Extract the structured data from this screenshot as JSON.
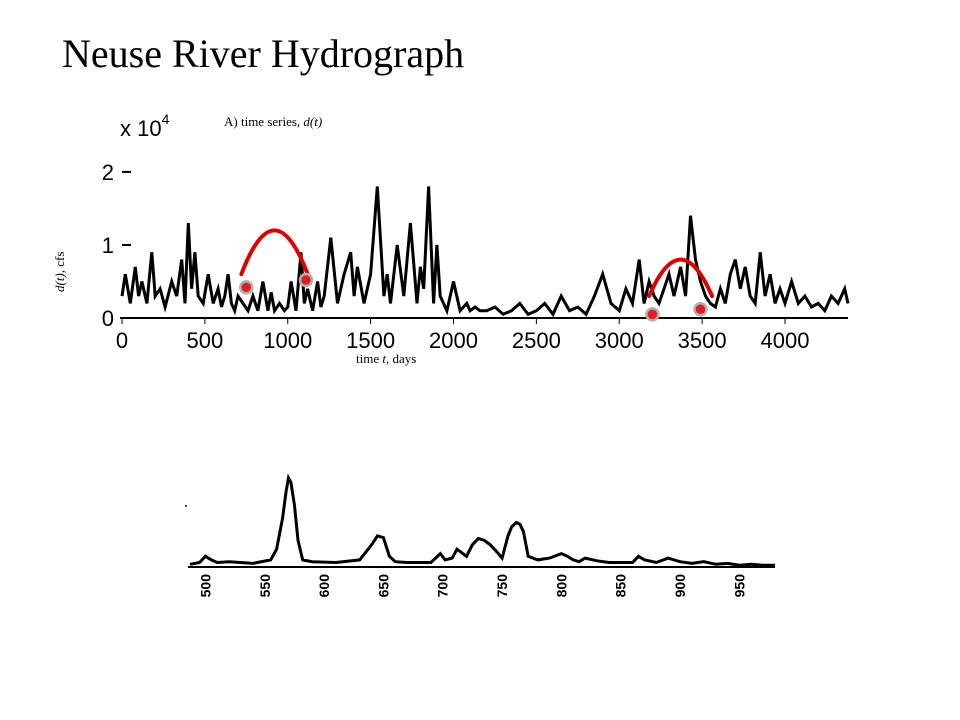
{
  "slide": {
    "title": "Neuse River Hydrograph"
  },
  "colors": {
    "series": "#000000",
    "highlight_arc": "#e00000",
    "marker_fill": "#e02020",
    "marker_ring": "#b0b0b0"
  },
  "chart_data": [
    {
      "type": "line",
      "subtitle_prefix": "A) time series, ",
      "subtitle_var": "d(t)",
      "xlabel_prefix": "time ",
      "xlabel_var": "t,",
      "xlabel_suffix": " days",
      "ylabel_var": "d(t),",
      "ylabel_unit": " cfs",
      "y_multiplier_base": "x 10",
      "y_multiplier_exp": "4",
      "xlim": [
        0,
        4380
      ],
      "ylim": [
        0,
        2.3
      ],
      "xticks": [
        "0",
        "500",
        "1000",
        "1500",
        "2000",
        "2500",
        "3000",
        "3500",
        "4000"
      ],
      "xtick_values": [
        0,
        500,
        1000,
        1500,
        2000,
        2500,
        3000,
        3500,
        4000
      ],
      "yticks": [
        "0",
        "1",
        "2"
      ],
      "ytick_values": [
        0,
        1,
        2
      ],
      "grid": false,
      "series": [
        {
          "x": [
            0,
            20,
            50,
            80,
            100,
            120,
            150,
            180,
            200,
            230,
            260,
            300,
            330,
            360,
            380,
            400,
            420,
            440,
            460,
            490,
            520,
            550,
            580,
            600,
            620,
            640,
            660,
            680,
            700,
            730,
            760,
            790,
            820,
            850,
            880,
            900,
            920,
            950,
            980,
            1000,
            1020,
            1050,
            1080,
            1100,
            1120,
            1150,
            1180,
            1200,
            1220,
            1260,
            1300,
            1340,
            1380,
            1400,
            1420,
            1460,
            1500,
            1540,
            1580,
            1600,
            1620,
            1660,
            1700,
            1740,
            1780,
            1800,
            1820,
            1850,
            1880,
            1900,
            1920,
            1960,
            2000,
            2040,
            2080,
            2100,
            2130,
            2160,
            2200,
            2250,
            2300,
            2350,
            2400,
            2450,
            2500,
            2550,
            2600,
            2650,
            2700,
            2750,
            2800,
            2850,
            2900,
            2950,
            3000,
            3040,
            3080,
            3120,
            3150,
            3180,
            3210,
            3240,
            3270,
            3300,
            3330,
            3350,
            3370,
            3400,
            3430,
            3460,
            3490,
            3520,
            3550,
            3580,
            3610,
            3640,
            3670,
            3700,
            3730,
            3760,
            3790,
            3820,
            3850,
            3880,
            3910,
            3940,
            3970,
            4000,
            4040,
            4080,
            4120,
            4160,
            4200,
            4240,
            4280,
            4320,
            4360,
            4380
          ],
          "values": [
            0.3,
            0.6,
            0.2,
            0.7,
            0.3,
            0.5,
            0.2,
            0.9,
            0.3,
            0.4,
            0.15,
            0.5,
            0.3,
            0.8,
            0.2,
            1.3,
            0.4,
            0.9,
            0.3,
            0.2,
            0.6,
            0.2,
            0.4,
            0.15,
            0.3,
            0.6,
            0.2,
            0.1,
            0.3,
            0.2,
            0.1,
            0.3,
            0.1,
            0.5,
            0.1,
            0.35,
            0.1,
            0.2,
            0.1,
            0.15,
            0.5,
            0.1,
            0.9,
            0.2,
            0.4,
            0.1,
            0.5,
            0.15,
            0.3,
            1.1,
            0.2,
            0.6,
            0.9,
            0.3,
            0.7,
            0.2,
            0.6,
            1.8,
            0.3,
            0.6,
            0.2,
            1.0,
            0.3,
            1.3,
            0.2,
            0.7,
            0.4,
            1.8,
            0.2,
            1.0,
            0.3,
            0.1,
            0.5,
            0.1,
            0.2,
            0.1,
            0.15,
            0.1,
            0.1,
            0.15,
            0.05,
            0.1,
            0.2,
            0.05,
            0.1,
            0.2,
            0.05,
            0.3,
            0.1,
            0.15,
            0.05,
            0.3,
            0.6,
            0.2,
            0.1,
            0.4,
            0.2,
            0.8,
            0.2,
            0.5,
            0.3,
            0.2,
            0.4,
            0.6,
            0.3,
            0.5,
            0.7,
            0.3,
            1.4,
            0.8,
            0.5,
            0.3,
            0.2,
            0.15,
            0.4,
            0.2,
            0.6,
            0.8,
            0.4,
            0.7,
            0.3,
            0.2,
            0.9,
            0.3,
            0.6,
            0.2,
            0.4,
            0.2,
            0.5,
            0.2,
            0.3,
            0.15,
            0.2,
            0.1,
            0.3,
            0.2,
            0.4,
            0.2
          ],
          "comment": ""
        }
      ],
      "highlight_arcs": [
        {
          "x_start": 720,
          "x_end": 1120,
          "peak": 1.2,
          "base": 0.6
        },
        {
          "x_start": 3180,
          "x_end": 3560,
          "peak": 0.8,
          "base": 0.3
        }
      ],
      "markers": [
        {
          "x": 750,
          "y": 0.42
        },
        {
          "x": 1110,
          "y": 0.52
        },
        {
          "x": 3200,
          "y": 0.05
        },
        {
          "x": 3490,
          "y": 0.12
        }
      ]
    },
    {
      "type": "line",
      "xlim": [
        487,
        980
      ],
      "ylim": [
        0,
        1
      ],
      "xticks": [
        "500",
        "550",
        "600",
        "650",
        "700",
        "750",
        "800",
        "850",
        "900",
        "950"
      ],
      "xtick_values": [
        500,
        550,
        600,
        650,
        700,
        750,
        800,
        850,
        900,
        950
      ],
      "grid": false,
      "series": [
        {
          "x": [
            487,
            495,
            500,
            505,
            510,
            520,
            540,
            555,
            560,
            565,
            568,
            570,
            572,
            575,
            578,
            582,
            590,
            610,
            630,
            640,
            645,
            650,
            655,
            660,
            670,
            690,
            698,
            702,
            708,
            712,
            720,
            725,
            730,
            735,
            740,
            745,
            750,
            755,
            758,
            762,
            765,
            768,
            772,
            780,
            790,
            800,
            805,
            810,
            815,
            820,
            830,
            840,
            850,
            860,
            865,
            870,
            880,
            890,
            895,
            900,
            910,
            920,
            930,
            940,
            950,
            960,
            970,
            980
          ],
          "values": [
            0.03,
            0.05,
            0.12,
            0.08,
            0.05,
            0.06,
            0.04,
            0.08,
            0.2,
            0.55,
            0.85,
            1.0,
            0.95,
            0.7,
            0.3,
            0.08,
            0.06,
            0.05,
            0.08,
            0.25,
            0.35,
            0.33,
            0.12,
            0.06,
            0.05,
            0.05,
            0.15,
            0.08,
            0.1,
            0.2,
            0.12,
            0.25,
            0.32,
            0.3,
            0.25,
            0.18,
            0.1,
            0.35,
            0.45,
            0.5,
            0.48,
            0.4,
            0.12,
            0.08,
            0.1,
            0.15,
            0.12,
            0.08,
            0.06,
            0.1,
            0.07,
            0.05,
            0.05,
            0.05,
            0.12,
            0.08,
            0.05,
            0.1,
            0.08,
            0.06,
            0.04,
            0.06,
            0.03,
            0.04,
            0.02,
            0.03,
            0.02,
            0.02
          ]
        }
      ]
    }
  ]
}
